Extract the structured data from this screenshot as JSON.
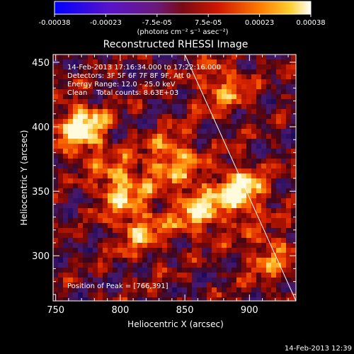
{
  "chart_data": {
    "type": "heatmap",
    "title": "Reconstructed RHESSI Image",
    "xlabel": "Heliocentric X (arcsec)",
    "ylabel": "Heliocentric Y (arcsec)",
    "xlim": [
      748,
      936
    ],
    "ylim": [
      265,
      456
    ],
    "xticks": [
      750,
      800,
      850,
      900
    ],
    "yticks": [
      300,
      350,
      400,
      450
    ],
    "colorbar": {
      "ticks": [
        "-0.00038",
        "-0.00023",
        "-7.5e-05",
        "7.5e-05",
        "0.00023",
        "0.00038"
      ],
      "units": "(photons cm⁻² s⁻¹ asec⁻²)"
    },
    "info_lines": [
      "14-Feb-2013 17:16:34.000 to 17:22:16.000",
      "Detectors: 3F 5F 6F 7F 8F 9F, Att 0",
      "Energy Range: 12.0 - 25.0 keV",
      "Clean    Total counts: 8.63E+03"
    ],
    "peak_label": "Position of Peak = [766,391]",
    "peak": {
      "x": 766,
      "y": 391
    },
    "limb_line": [
      [
        850,
        456
      ],
      [
        936,
        265
      ]
    ],
    "hotspots": [
      {
        "x": 770,
        "y": 398,
        "level": 1.0
      },
      {
        "x": 893,
        "y": 350,
        "level": 0.9
      },
      {
        "x": 800,
        "y": 355,
        "level": 0.75
      },
      {
        "x": 840,
        "y": 375,
        "level": 0.7
      },
      {
        "x": 860,
        "y": 335,
        "level": 0.7
      },
      {
        "x": 815,
        "y": 320,
        "level": 0.6
      },
      {
        "x": 880,
        "y": 430,
        "level": 0.55
      },
      {
        "x": 915,
        "y": 300,
        "level": 0.5
      }
    ],
    "footer_date": "14-Feb-2013 12:39"
  }
}
